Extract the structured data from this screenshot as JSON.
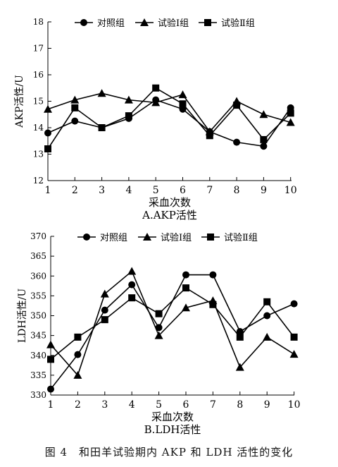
{
  "caption": "图 4　和田羊试验期内 AKP 和 LDH 活性的变化",
  "chart_data": [
    {
      "type": "line",
      "title": "A.AKP活性",
      "xlabel": "采血次数",
      "ylabel": "AKP活性/U",
      "x": [
        1,
        2,
        3,
        4,
        5,
        6,
        7,
        8,
        9,
        10
      ],
      "xticks": [
        "1",
        "2",
        "3",
        "4",
        "5",
        "6",
        "7",
        "8",
        "9",
        "10"
      ],
      "ylim": [
        12,
        18
      ],
      "yticks": [
        12,
        13,
        14,
        15,
        16,
        17,
        18
      ],
      "grid": false,
      "legend": "top",
      "series": [
        {
          "name": "对照组",
          "marker": "circle",
          "values": [
            13.8,
            14.25,
            14.0,
            14.35,
            15.05,
            14.7,
            13.85,
            13.45,
            13.3,
            14.75
          ]
        },
        {
          "name": "试验Ⅰ组",
          "marker": "triangle",
          "values": [
            14.7,
            15.05,
            15.3,
            15.05,
            14.95,
            15.25,
            13.85,
            15.0,
            14.5,
            14.2
          ]
        },
        {
          "name": "试验Ⅱ组",
          "marker": "square",
          "values": [
            13.2,
            14.75,
            14.0,
            14.45,
            15.5,
            14.9,
            13.7,
            14.85,
            13.55,
            14.55
          ]
        }
      ]
    },
    {
      "type": "line",
      "title": "B.LDH活性",
      "xlabel": "采血次数",
      "ylabel": "LDH活性/U",
      "x": [
        1,
        2,
        3,
        4,
        5,
        6,
        7,
        8,
        9,
        10
      ],
      "xticks": [
        "1",
        "2",
        "3",
        "4",
        "5",
        "6",
        "7",
        "8",
        "9",
        "10"
      ],
      "ylim": [
        330,
        370
      ],
      "yticks": [
        330,
        335,
        340,
        345,
        350,
        355,
        360,
        365,
        370
      ],
      "grid": false,
      "legend": "top",
      "series": [
        {
          "name": "对照组",
          "marker": "circle",
          "values": [
            331.5,
            340.2,
            351.4,
            357.8,
            347.0,
            360.3,
            360.3,
            346.0,
            350.0,
            353.0
          ]
        },
        {
          "name": "试验Ⅰ组",
          "marker": "triangle",
          "values": [
            342.7,
            335.0,
            355.5,
            361.2,
            345.0,
            352.0,
            353.8,
            337.0,
            344.6,
            340.3
          ]
        },
        {
          "name": "试验Ⅱ组",
          "marker": "square",
          "values": [
            339.0,
            344.6,
            349.0,
            354.5,
            350.5,
            357.0,
            352.8,
            344.6,
            353.5,
            344.6
          ]
        }
      ]
    }
  ]
}
